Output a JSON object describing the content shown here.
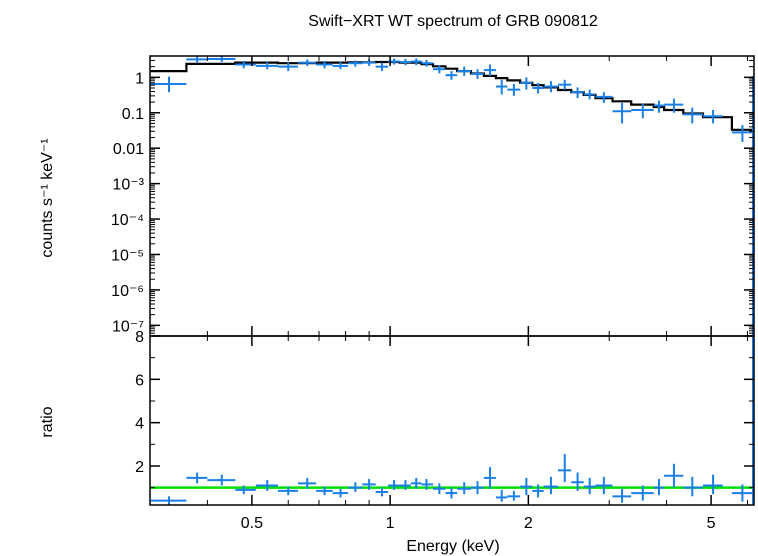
{
  "chart_data": {
    "type": "scatter",
    "title": "Swift−XRT WT spectrum of GRB 090812",
    "xlabel": "Energy (keV)",
    "xscale": "log",
    "xlim": [
      0.3,
      6.2
    ],
    "x_ticks": [
      {
        "value": 0.5,
        "label": "0.5"
      },
      {
        "value": 1,
        "label": "1"
      },
      {
        "value": 2,
        "label": "2"
      },
      {
        "value": 5,
        "label": "5"
      }
    ],
    "colors": {
      "data": "#1a7fe8",
      "model": "#000000",
      "unity_line": "#00e000",
      "frame": "#000000"
    },
    "panels": [
      {
        "name": "spectrum",
        "ylabel": "counts s⁻¹ keV⁻¹",
        "yscale": "log",
        "ylim": [
          5e-08,
          4
        ],
        "y_ticks": [
          {
            "value": 1,
            "label": "1"
          },
          {
            "value": 0.1,
            "label": "0.1"
          },
          {
            "value": 0.01,
            "label": "0.01"
          },
          {
            "value": 0.001,
            "label": "10⁻³"
          },
          {
            "value": 0.0001,
            "label": "10⁻⁴"
          },
          {
            "value": 1e-05,
            "label": "10⁻⁵"
          },
          {
            "value": 1e-06,
            "label": "10⁻⁶"
          },
          {
            "value": 1e-07,
            "label": "10⁻⁷"
          }
        ],
        "data_points": [
          {
            "x": 0.33,
            "xlo": 0.3,
            "xhi": 0.36,
            "y": 0.65,
            "ylo": 0.38,
            "yhi": 1.05
          },
          {
            "x": 0.38,
            "xlo": 0.36,
            "xhi": 0.4,
            "y": 3.2,
            "ylo": 2.6,
            "yhi": 3.9
          },
          {
            "x": 0.43,
            "xlo": 0.4,
            "xhi": 0.46,
            "y": 3.3,
            "ylo": 2.7,
            "yhi": 3.9
          },
          {
            "x": 0.48,
            "xlo": 0.46,
            "xhi": 0.51,
            "y": 2.3,
            "ylo": 1.8,
            "yhi": 2.9
          },
          {
            "x": 0.54,
            "xlo": 0.51,
            "xhi": 0.57,
            "y": 2.1,
            "ylo": 1.7,
            "yhi": 2.7
          },
          {
            "x": 0.6,
            "xlo": 0.57,
            "xhi": 0.63,
            "y": 2.0,
            "ylo": 1.5,
            "yhi": 2.6
          },
          {
            "x": 0.66,
            "xlo": 0.63,
            "xhi": 0.69,
            "y": 2.6,
            "ylo": 2.1,
            "yhi": 3.2
          },
          {
            "x": 0.72,
            "xlo": 0.69,
            "xhi": 0.75,
            "y": 2.3,
            "ylo": 1.8,
            "yhi": 2.9
          },
          {
            "x": 0.78,
            "xlo": 0.75,
            "xhi": 0.81,
            "y": 2.1,
            "ylo": 1.7,
            "yhi": 2.7
          },
          {
            "x": 0.84,
            "xlo": 0.81,
            "xhi": 0.87,
            "y": 2.5,
            "ylo": 2.0,
            "yhi": 3.0
          },
          {
            "x": 0.9,
            "xlo": 0.87,
            "xhi": 0.93,
            "y": 2.6,
            "ylo": 2.1,
            "yhi": 3.2
          },
          {
            "x": 0.96,
            "xlo": 0.93,
            "xhi": 0.99,
            "y": 2.0,
            "ylo": 1.5,
            "yhi": 2.6
          },
          {
            "x": 1.02,
            "xlo": 0.99,
            "xhi": 1.05,
            "y": 2.8,
            "ylo": 2.3,
            "yhi": 3.4
          },
          {
            "x": 1.08,
            "xlo": 1.05,
            "xhi": 1.11,
            "y": 2.7,
            "ylo": 2.2,
            "yhi": 3.3
          },
          {
            "x": 1.14,
            "xlo": 1.11,
            "xhi": 1.17,
            "y": 2.8,
            "ylo": 2.2,
            "yhi": 3.4
          },
          {
            "x": 1.2,
            "xlo": 1.17,
            "xhi": 1.24,
            "y": 2.5,
            "ylo": 2.0,
            "yhi": 3.1
          },
          {
            "x": 1.28,
            "xlo": 1.24,
            "xhi": 1.32,
            "y": 1.7,
            "ylo": 1.3,
            "yhi": 2.2
          },
          {
            "x": 1.36,
            "xlo": 1.32,
            "xhi": 1.4,
            "y": 1.15,
            "ylo": 0.85,
            "yhi": 1.5
          },
          {
            "x": 1.45,
            "xlo": 1.4,
            "xhi": 1.5,
            "y": 1.5,
            "ylo": 1.1,
            "yhi": 2.0
          },
          {
            "x": 1.55,
            "xlo": 1.5,
            "xhi": 1.6,
            "y": 1.25,
            "ylo": 0.9,
            "yhi": 1.7
          },
          {
            "x": 1.65,
            "xlo": 1.6,
            "xhi": 1.7,
            "y": 1.6,
            "ylo": 1.1,
            "yhi": 2.3
          },
          {
            "x": 1.75,
            "xlo": 1.7,
            "xhi": 1.8,
            "y": 0.55,
            "ylo": 0.33,
            "yhi": 0.85
          },
          {
            "x": 1.86,
            "xlo": 1.8,
            "xhi": 1.92,
            "y": 0.45,
            "ylo": 0.3,
            "yhi": 0.65
          },
          {
            "x": 1.98,
            "xlo": 1.92,
            "xhi": 2.04,
            "y": 0.7,
            "ylo": 0.45,
            "yhi": 1.0
          },
          {
            "x": 2.1,
            "xlo": 2.04,
            "xhi": 2.16,
            "y": 0.5,
            "ylo": 0.35,
            "yhi": 0.7
          },
          {
            "x": 2.24,
            "xlo": 2.16,
            "xhi": 2.32,
            "y": 0.55,
            "ylo": 0.38,
            "yhi": 0.78
          },
          {
            "x": 2.4,
            "xlo": 2.32,
            "xhi": 2.48,
            "y": 0.62,
            "ylo": 0.45,
            "yhi": 0.85
          },
          {
            "x": 2.56,
            "xlo": 2.48,
            "xhi": 2.64,
            "y": 0.38,
            "ylo": 0.26,
            "yhi": 0.52
          },
          {
            "x": 2.72,
            "xlo": 2.64,
            "xhi": 2.8,
            "y": 0.33,
            "ylo": 0.24,
            "yhi": 0.45
          },
          {
            "x": 2.92,
            "xlo": 2.8,
            "xhi": 3.05,
            "y": 0.28,
            "ylo": 0.19,
            "yhi": 0.38
          },
          {
            "x": 3.2,
            "xlo": 3.05,
            "xhi": 3.35,
            "y": 0.11,
            "ylo": 0.05,
            "yhi": 0.19
          },
          {
            "x": 3.55,
            "xlo": 3.35,
            "xhi": 3.75,
            "y": 0.12,
            "ylo": 0.07,
            "yhi": 0.18
          },
          {
            "x": 3.85,
            "xlo": 3.75,
            "xhi": 3.95,
            "y": 0.16,
            "ylo": 0.1,
            "yhi": 0.22
          },
          {
            "x": 4.15,
            "xlo": 3.95,
            "xhi": 4.35,
            "y": 0.17,
            "ylo": 0.1,
            "yhi": 0.25
          },
          {
            "x": 4.55,
            "xlo": 4.35,
            "xhi": 4.8,
            "y": 0.09,
            "ylo": 0.05,
            "yhi": 0.14
          },
          {
            "x": 5.05,
            "xlo": 4.8,
            "xhi": 5.3,
            "y": 0.08,
            "ylo": 0.05,
            "yhi": 0.12
          },
          {
            "x": 5.85,
            "xlo": 5.55,
            "xhi": 6.15,
            "y": 0.028,
            "ylo": 0.015,
            "yhi": 0.045
          }
        ],
        "model_steps": [
          {
            "x0": 0.3,
            "x1": 0.36,
            "y": 1.5
          },
          {
            "x0": 0.36,
            "x1": 0.46,
            "y": 2.4
          },
          {
            "x0": 0.46,
            "x1": 0.57,
            "y": 2.6
          },
          {
            "x0": 0.57,
            "x1": 0.69,
            "y": 2.5
          },
          {
            "x0": 0.69,
            "x1": 0.81,
            "y": 2.6
          },
          {
            "x0": 0.81,
            "x1": 0.93,
            "y": 2.65
          },
          {
            "x0": 0.93,
            "x1": 1.05,
            "y": 2.7
          },
          {
            "x0": 1.05,
            "x1": 1.17,
            "y": 2.6
          },
          {
            "x0": 1.17,
            "x1": 1.24,
            "y": 2.35
          },
          {
            "x0": 1.24,
            "x1": 1.32,
            "y": 2.05
          },
          {
            "x0": 1.32,
            "x1": 1.4,
            "y": 1.75
          },
          {
            "x0": 1.4,
            "x1": 1.5,
            "y": 1.5
          },
          {
            "x0": 1.5,
            "x1": 1.6,
            "y": 1.28
          },
          {
            "x0": 1.6,
            "x1": 1.7,
            "y": 1.1
          },
          {
            "x0": 1.7,
            "x1": 1.8,
            "y": 0.95
          },
          {
            "x0": 1.8,
            "x1": 1.92,
            "y": 0.82
          },
          {
            "x0": 1.92,
            "x1": 2.04,
            "y": 0.7
          },
          {
            "x0": 2.04,
            "x1": 2.16,
            "y": 0.6
          },
          {
            "x0": 2.16,
            "x1": 2.32,
            "y": 0.52
          },
          {
            "x0": 2.32,
            "x1": 2.48,
            "y": 0.44
          },
          {
            "x0": 2.48,
            "x1": 2.64,
            "y": 0.38
          },
          {
            "x0": 2.64,
            "x1": 2.8,
            "y": 0.32
          },
          {
            "x0": 2.8,
            "x1": 3.05,
            "y": 0.26
          },
          {
            "x0": 3.05,
            "x1": 3.35,
            "y": 0.21
          },
          {
            "x0": 3.35,
            "x1": 3.75,
            "y": 0.17
          },
          {
            "x0": 3.75,
            "x1": 3.95,
            "y": 0.145
          },
          {
            "x0": 3.95,
            "x1": 4.35,
            "y": 0.12
          },
          {
            "x0": 4.35,
            "x1": 4.8,
            "y": 0.095
          },
          {
            "x0": 4.8,
            "x1": 5.55,
            "y": 0.075
          },
          {
            "x0": 5.55,
            "x1": 6.15,
            "y": 0.033
          }
        ]
      },
      {
        "name": "ratio",
        "ylabel": "ratio",
        "yscale": "linear",
        "ylim": [
          0.2,
          8
        ],
        "y_ticks": [
          {
            "value": 2,
            "label": "2"
          },
          {
            "value": 4,
            "label": "4"
          },
          {
            "value": 6,
            "label": "6"
          },
          {
            "value": 8,
            "label": "8"
          }
        ],
        "unity_line": 1,
        "data_points": [
          {
            "x": 0.33,
            "xlo": 0.3,
            "xhi": 0.36,
            "y": 0.4,
            "ylo": 0.2,
            "yhi": 0.6
          },
          {
            "x": 0.38,
            "xlo": 0.36,
            "xhi": 0.4,
            "y": 1.45,
            "ylo": 1.2,
            "yhi": 1.7
          },
          {
            "x": 0.43,
            "xlo": 0.4,
            "xhi": 0.46,
            "y": 1.35,
            "ylo": 1.1,
            "yhi": 1.6
          },
          {
            "x": 0.48,
            "xlo": 0.46,
            "xhi": 0.51,
            "y": 0.9,
            "ylo": 0.7,
            "yhi": 1.1
          },
          {
            "x": 0.54,
            "xlo": 0.51,
            "xhi": 0.57,
            "y": 1.1,
            "ylo": 0.85,
            "yhi": 1.35
          },
          {
            "x": 0.6,
            "xlo": 0.57,
            "xhi": 0.63,
            "y": 0.85,
            "ylo": 0.65,
            "yhi": 1.05
          },
          {
            "x": 0.66,
            "xlo": 0.63,
            "xhi": 0.69,
            "y": 1.2,
            "ylo": 0.95,
            "yhi": 1.45
          },
          {
            "x": 0.72,
            "xlo": 0.69,
            "xhi": 0.75,
            "y": 0.85,
            "ylo": 0.65,
            "yhi": 1.05
          },
          {
            "x": 0.78,
            "xlo": 0.75,
            "xhi": 0.81,
            "y": 0.75,
            "ylo": 0.55,
            "yhi": 0.95
          },
          {
            "x": 0.84,
            "xlo": 0.81,
            "xhi": 0.87,
            "y": 1.0,
            "ylo": 0.8,
            "yhi": 1.25
          },
          {
            "x": 0.9,
            "xlo": 0.87,
            "xhi": 0.93,
            "y": 1.15,
            "ylo": 0.9,
            "yhi": 1.4
          },
          {
            "x": 0.96,
            "xlo": 0.93,
            "xhi": 0.99,
            "y": 0.8,
            "ylo": 0.6,
            "yhi": 1.0
          },
          {
            "x": 1.02,
            "xlo": 0.99,
            "xhi": 1.05,
            "y": 1.1,
            "ylo": 0.9,
            "yhi": 1.35
          },
          {
            "x": 1.08,
            "xlo": 1.05,
            "xhi": 1.11,
            "y": 1.1,
            "ylo": 0.9,
            "yhi": 1.35
          },
          {
            "x": 1.14,
            "xlo": 1.11,
            "xhi": 1.17,
            "y": 1.2,
            "ylo": 0.95,
            "yhi": 1.45
          },
          {
            "x": 1.2,
            "xlo": 1.17,
            "xhi": 1.24,
            "y": 1.15,
            "ylo": 0.9,
            "yhi": 1.4
          },
          {
            "x": 1.28,
            "xlo": 1.24,
            "xhi": 1.32,
            "y": 0.95,
            "ylo": 0.7,
            "yhi": 1.2
          },
          {
            "x": 1.36,
            "xlo": 1.32,
            "xhi": 1.4,
            "y": 0.75,
            "ylo": 0.5,
            "yhi": 1.0
          },
          {
            "x": 1.45,
            "xlo": 1.4,
            "xhi": 1.5,
            "y": 0.95,
            "ylo": 0.7,
            "yhi": 1.25
          },
          {
            "x": 1.55,
            "xlo": 1.5,
            "xhi": 1.6,
            "y": 1.0,
            "ylo": 0.7,
            "yhi": 1.3
          },
          {
            "x": 1.65,
            "xlo": 1.6,
            "xhi": 1.7,
            "y": 1.45,
            "ylo": 0.95,
            "yhi": 1.95
          },
          {
            "x": 1.75,
            "xlo": 1.7,
            "xhi": 1.8,
            "y": 0.55,
            "ylo": 0.35,
            "yhi": 0.9
          },
          {
            "x": 1.86,
            "xlo": 1.8,
            "xhi": 1.92,
            "y": 0.6,
            "ylo": 0.4,
            "yhi": 0.85
          },
          {
            "x": 1.98,
            "xlo": 1.92,
            "xhi": 2.04,
            "y": 1.05,
            "ylo": 0.65,
            "yhi": 1.45
          },
          {
            "x": 2.1,
            "xlo": 2.04,
            "xhi": 2.16,
            "y": 0.85,
            "ylo": 0.55,
            "yhi": 1.15
          },
          {
            "x": 2.24,
            "xlo": 2.16,
            "xhi": 2.32,
            "y": 1.05,
            "ylo": 0.7,
            "yhi": 1.5
          },
          {
            "x": 2.4,
            "xlo": 2.32,
            "xhi": 2.48,
            "y": 1.8,
            "ylo": 1.25,
            "yhi": 2.55
          },
          {
            "x": 2.56,
            "xlo": 2.48,
            "xhi": 2.64,
            "y": 1.25,
            "ylo": 0.85,
            "yhi": 1.7
          },
          {
            "x": 2.72,
            "xlo": 2.64,
            "xhi": 2.8,
            "y": 1.05,
            "ylo": 0.7,
            "yhi": 1.45
          },
          {
            "x": 2.92,
            "xlo": 2.8,
            "xhi": 3.05,
            "y": 1.1,
            "ylo": 0.7,
            "yhi": 1.5
          },
          {
            "x": 3.2,
            "xlo": 3.05,
            "xhi": 3.35,
            "y": 0.6,
            "ylo": 0.3,
            "yhi": 0.95
          },
          {
            "x": 3.55,
            "xlo": 3.35,
            "xhi": 3.75,
            "y": 0.75,
            "ylo": 0.4,
            "yhi": 1.1
          },
          {
            "x": 3.85,
            "xlo": 3.75,
            "xhi": 3.95,
            "y": 1.0,
            "ylo": 0.65,
            "yhi": 1.4
          },
          {
            "x": 4.15,
            "xlo": 3.95,
            "xhi": 4.35,
            "y": 1.55,
            "ylo": 1.0,
            "yhi": 2.1
          },
          {
            "x": 4.55,
            "xlo": 4.35,
            "xhi": 4.8,
            "y": 1.0,
            "ylo": 0.6,
            "yhi": 1.5
          },
          {
            "x": 5.05,
            "xlo": 4.8,
            "xhi": 5.3,
            "y": 1.1,
            "ylo": 0.7,
            "yhi": 1.6
          },
          {
            "x": 5.85,
            "xlo": 5.55,
            "xhi": 6.15,
            "y": 0.75,
            "ylo": 0.35,
            "yhi": 1.15
          }
        ]
      }
    ]
  }
}
